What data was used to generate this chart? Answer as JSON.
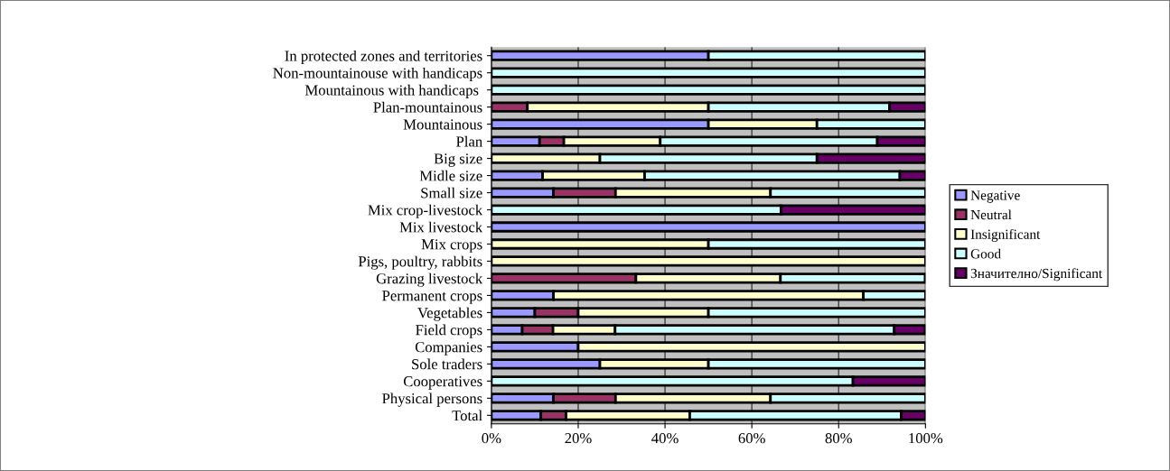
{
  "chart_data": {
    "type": "bar",
    "orientation": "horizontal",
    "stacked": true,
    "categories": [
      "In protected zones and territories",
      "Non-mountainouse with handicaps",
      "Mountainous with handicaps ",
      "Plan-mountainous",
      "Mountainous",
      "Plan",
      "Big size",
      "Midle size",
      "Small size",
      "Mix crop-livestock",
      "Mix livestock",
      "Mix crops",
      "Pigs, poultry, rabbits",
      "Grazing livestock",
      "Permanent crops",
      "Vegetables",
      "Field crops",
      "Companies",
      "Sole traders",
      "Cooperatives",
      "Physical persons",
      "Total"
    ],
    "series": [
      {
        "name": "Negative",
        "color": "#9999ff",
        "values": [
          50,
          0,
          0,
          0,
          50,
          11.1,
          0,
          11.8,
          14.3,
          0,
          100,
          0,
          0,
          0,
          14.3,
          10,
          7.1,
          20,
          25,
          0,
          14.3,
          11.4
        ]
      },
      {
        "name": "Neutral",
        "color": "#993366",
        "values": [
          0,
          0,
          0,
          8.3,
          0,
          5.6,
          0,
          0,
          14.3,
          0,
          0,
          0,
          0,
          33.3,
          0,
          10,
          7.1,
          0,
          0,
          0,
          14.3,
          5.8
        ]
      },
      {
        "name": "Insignificant",
        "color": "#ffffcc",
        "values": [
          0,
          0,
          0,
          41.7,
          25,
          22.2,
          25,
          23.5,
          35.7,
          0,
          0,
          50,
          100,
          33.3,
          71.4,
          30,
          14.3,
          80,
          25,
          0,
          35.7,
          28.5
        ]
      },
      {
        "name": "Good",
        "color": "#ccffff",
        "values": [
          50,
          100,
          100,
          41.7,
          25,
          50,
          50,
          58.8,
          35.7,
          66.7,
          0,
          50,
          0,
          33.3,
          14.3,
          50,
          64.3,
          0,
          50,
          83.3,
          35.7,
          48.7
        ]
      },
      {
        "name": "Значително/Significant",
        "color": "#660066",
        "values": [
          0,
          0,
          0,
          8.3,
          0,
          11.1,
          25,
          5.9,
          0,
          33.3,
          0,
          0,
          0,
          0,
          0,
          0,
          7.1,
          0,
          0,
          16.7,
          0,
          5.6
        ]
      }
    ],
    "xlim": [
      0,
      100
    ],
    "xticks": [
      {
        "value": 0,
        "label": "0%"
      },
      {
        "value": 20,
        "label": "20%"
      },
      {
        "value": 40,
        "label": "40%"
      },
      {
        "value": 60,
        "label": "60%"
      },
      {
        "value": 80,
        "label": "80%"
      },
      {
        "value": 100,
        "label": "100%"
      }
    ],
    "grid": "x",
    "legend": "right"
  }
}
